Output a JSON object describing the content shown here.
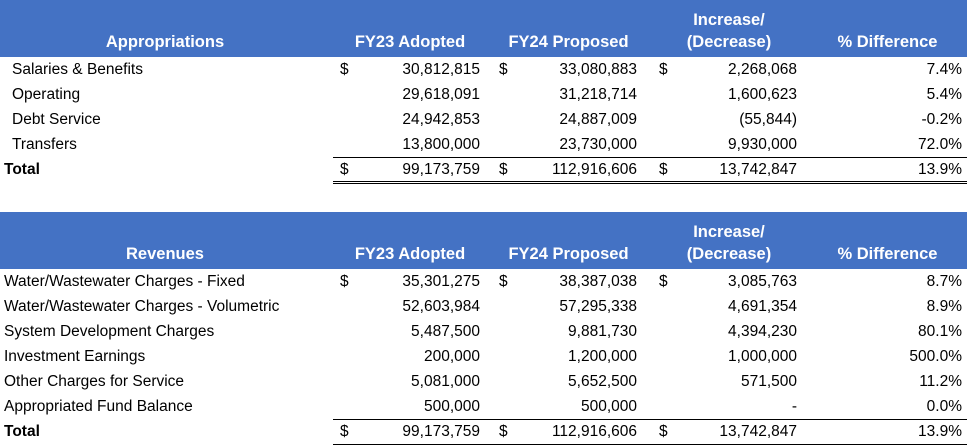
{
  "colors": {
    "header_bg": "#4472c4",
    "header_text": "#ffffff"
  },
  "tables": [
    {
      "headers": [
        "Appropriations",
        "FY23 Adopted",
        "FY24 Proposed",
        "Increase/\n(Decrease)",
        "% Difference"
      ],
      "rows": [
        {
          "label": "Salaries & Benefits",
          "fy23": "30,812,815",
          "fy24": "33,080,883",
          "change": "2,268,068",
          "pct": "7.4%",
          "dollar": "$"
        },
        {
          "label": "Operating",
          "fy23": "29,618,091",
          "fy24": "31,218,714",
          "change": "1,600,623",
          "pct": "5.4%"
        },
        {
          "label": "Debt Service",
          "fy23": "24,942,853",
          "fy24": "24,887,009",
          "change": "(55,844)",
          "pct": "-0.2%"
        },
        {
          "label": "Transfers",
          "fy23": "13,800,000",
          "fy24": "23,730,000",
          "change": "9,930,000",
          "pct": "72.0%"
        }
      ],
      "total": {
        "label": "Total",
        "fy23": "99,173,759",
        "fy24": "112,916,606",
        "change": "13,742,847",
        "pct": "13.9%",
        "dollar": "$"
      }
    },
    {
      "headers": [
        "Revenues",
        "FY23 Adopted",
        "FY24 Proposed",
        "Increase/\n(Decrease)",
        "% Difference"
      ],
      "rows": [
        {
          "label": "Water/Wastewater Charges - Fixed",
          "fy23": "35,301,275",
          "fy24": "38,387,038",
          "change": "3,085,763",
          "pct": "8.7%",
          "dollar": "$"
        },
        {
          "label": "Water/Wastewater Charges - Volumetric",
          "fy23": "52,603,984",
          "fy24": "57,295,338",
          "change": "4,691,354",
          "pct": "8.9%"
        },
        {
          "label": "System Development Charges",
          "fy23": "5,487,500",
          "fy24": "9,881,730",
          "change": "4,394,230",
          "pct": "80.1%"
        },
        {
          "label": "Investment Earnings",
          "fy23": "200,000",
          "fy24": "1,200,000",
          "change": "1,000,000",
          "pct": "500.0%"
        },
        {
          "label": "Other Charges for Service",
          "fy23": "5,081,000",
          "fy24": "5,652,500",
          "change": "571,500",
          "pct": "11.2%"
        },
        {
          "label": "Appropriated Fund Balance",
          "fy23": "500,000",
          "fy24": "500,000",
          "change": "-",
          "pct": "0.0%"
        }
      ],
      "total": {
        "label": "Total",
        "fy23": "99,173,759",
        "fy24": "112,916,606",
        "change": "13,742,847",
        "pct": "13.9%",
        "dollar": "$"
      }
    }
  ]
}
